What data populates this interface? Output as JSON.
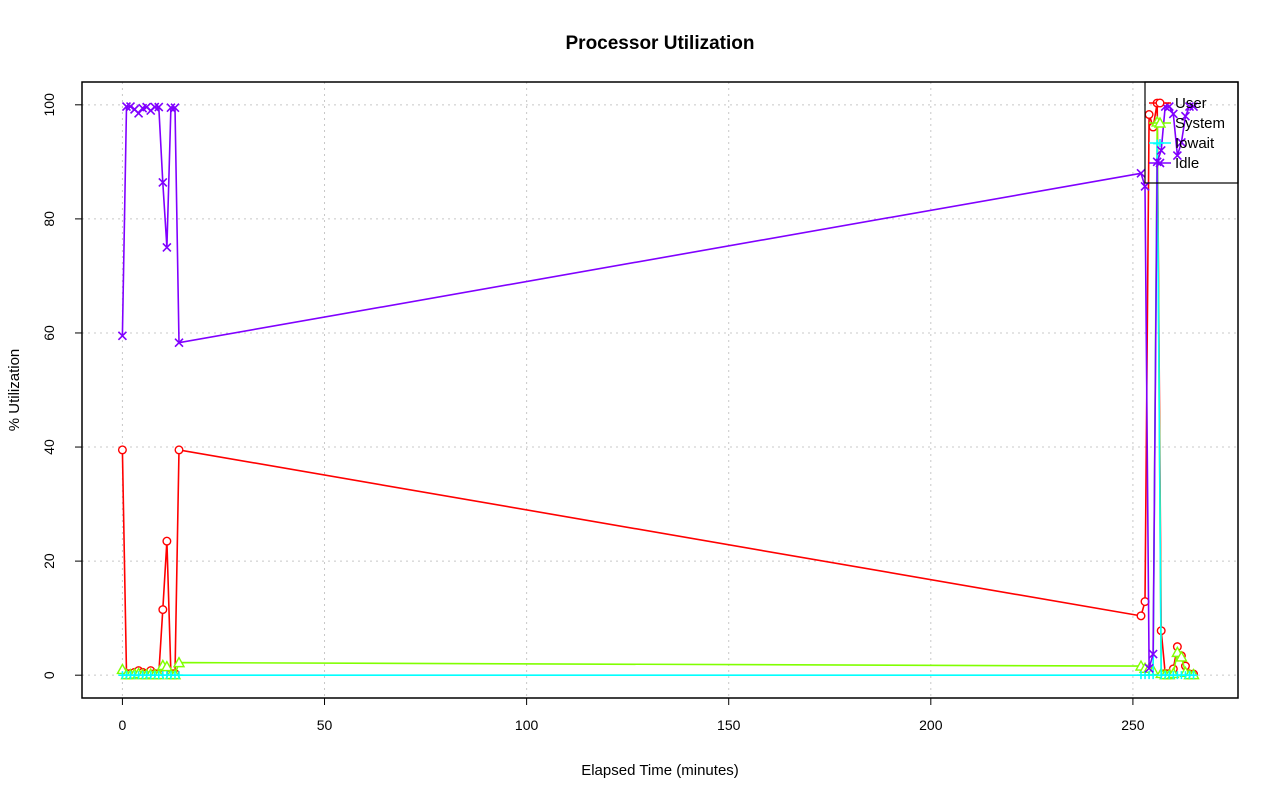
{
  "chart_data": {
    "type": "line",
    "title": "Processor Utilization",
    "xlabel": "Elapsed Time (minutes)",
    "ylabel": "% Utilization",
    "xlim": [
      -10,
      276
    ],
    "ylim": [
      -4,
      104
    ],
    "x_ticks": [
      0,
      50,
      100,
      150,
      200,
      250
    ],
    "y_ticks": [
      0,
      20,
      40,
      60,
      80,
      100
    ],
    "grid": true,
    "legend_position": "top-right",
    "series": [
      {
        "name": "User",
        "color": "#ff0000",
        "marker": "circle",
        "x": [
          0,
          1,
          2,
          3,
          4,
          5,
          6,
          7,
          8,
          9,
          10,
          11,
          12,
          13,
          14,
          252,
          253,
          254,
          255,
          256,
          257,
          258,
          259,
          260,
          261,
          262,
          263,
          264,
          265
        ],
        "y": [
          39.5,
          0.3,
          0.3,
          0.5,
          0.8,
          0.5,
          0.3,
          0.8,
          0.3,
          0.3,
          11.5,
          23.5,
          0.3,
          0.3,
          39.5,
          10.4,
          12.9,
          98.3,
          96.1,
          100.3,
          7.8,
          0.3,
          0.3,
          1.1,
          5.0,
          3.4,
          1.6,
          0.2,
          0.2
        ]
      },
      {
        "name": "System",
        "color": "#80ff00",
        "marker": "triangle",
        "x": [
          0,
          1,
          2,
          3,
          4,
          5,
          6,
          7,
          8,
          9,
          10,
          11,
          12,
          13,
          14,
          252,
          253,
          254,
          255,
          256,
          257,
          258,
          259,
          260,
          261,
          262,
          263,
          264,
          265
        ],
        "y": [
          1.0,
          0.1,
          0.1,
          0.2,
          0.3,
          0.1,
          0.1,
          0.2,
          0.1,
          0.1,
          1.7,
          1.5,
          0.1,
          0.1,
          2.2,
          1.6,
          1.2,
          1.2,
          0.8,
          97.0,
          0.3,
          0.1,
          0.1,
          0.3,
          4.0,
          3.2,
          0.5,
          0.1,
          0.1
        ]
      },
      {
        "name": "Iowait",
        "color": "#00ffff",
        "marker": "plus",
        "x": [
          0,
          1,
          2,
          3,
          4,
          5,
          6,
          7,
          8,
          9,
          10,
          11,
          12,
          13,
          14,
          252,
          253,
          254,
          255,
          256,
          257,
          258,
          259,
          260,
          261,
          262,
          263,
          264,
          265
        ],
        "y": [
          0,
          0,
          0,
          0,
          0,
          0,
          0,
          0,
          0,
          0,
          0,
          0,
          0,
          0,
          0,
          0,
          0,
          0,
          0,
          93.2,
          0,
          0,
          0,
          0,
          0,
          0,
          0,
          0,
          0
        ]
      },
      {
        "name": "Idle",
        "color": "#8000ff",
        "marker": "cross",
        "x": [
          0,
          1,
          2,
          3,
          4,
          5,
          6,
          7,
          8,
          9,
          10,
          11,
          12,
          13,
          14,
          252,
          253,
          254,
          255,
          256,
          257,
          258,
          259,
          260,
          261,
          262,
          263,
          264,
          265
        ],
        "y": [
          59.5,
          99.7,
          99.7,
          99.2,
          98.5,
          99.4,
          99.6,
          99.0,
          99.6,
          99.6,
          86.4,
          75.0,
          99.5,
          99.5,
          58.3,
          88.0,
          85.7,
          1.2,
          3.7,
          90.0,
          92.0,
          99.7,
          99.7,
          98.4,
          91.1,
          93.4,
          98.0,
          99.7,
          99.7
        ]
      }
    ]
  }
}
